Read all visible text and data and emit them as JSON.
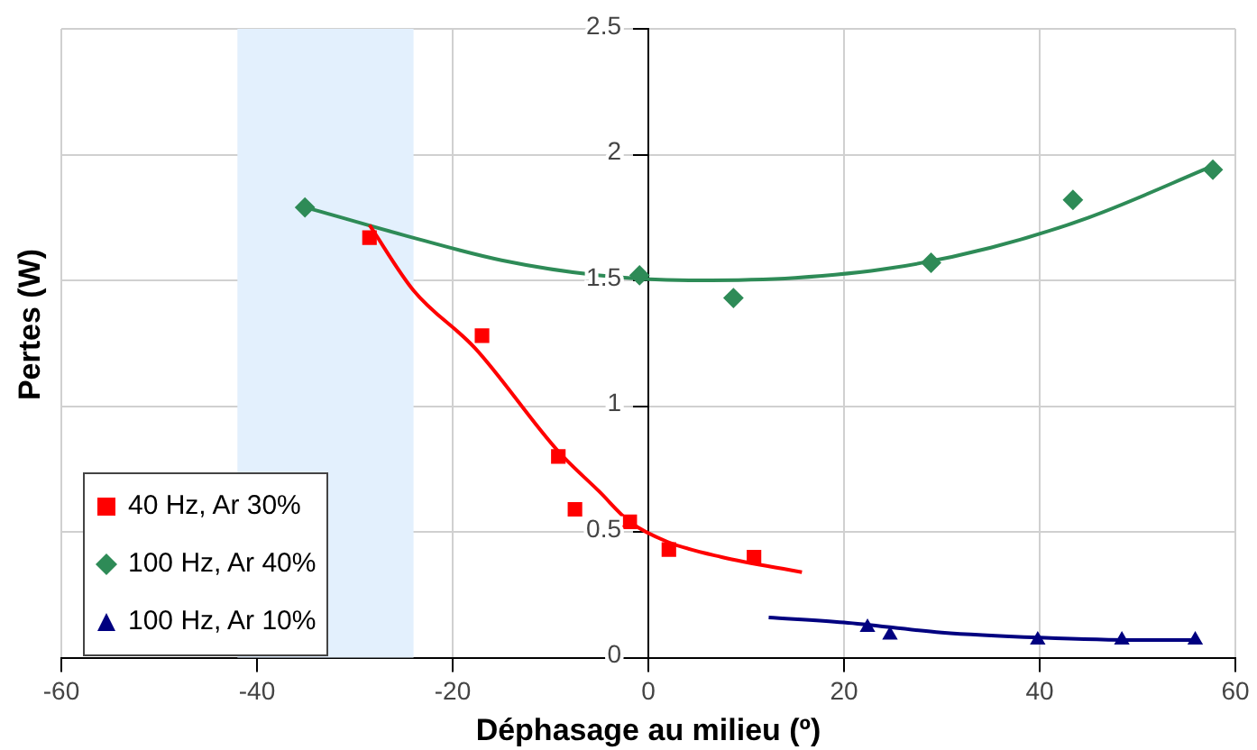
{
  "chart_data": {
    "type": "scatter",
    "xlabel": "Déphasage au milieu (º)",
    "ylabel": "Pertes (W)",
    "xlim": [
      -60,
      60
    ],
    "xticks": [
      -60,
      -40,
      -20,
      0,
      20,
      40,
      60
    ],
    "ylim": [
      0,
      2.5
    ],
    "yticks": [
      0,
      0.5,
      1,
      1.5,
      2,
      2.5
    ],
    "grid": true,
    "legend": "bottom left",
    "bands": [
      {
        "axis": "x",
        "from": -42,
        "to": -24,
        "color": "#e3f0fd"
      }
    ],
    "series": [
      {
        "name": "40 Hz, Ar 30%",
        "type": "scatter",
        "marker": "square",
        "color": "#ff0000",
        "x": [
          -28.5,
          -17,
          -9.2,
          -7.5,
          -1.9,
          2.1,
          10.8
        ],
        "values": [
          1.67,
          1.28,
          0.8,
          0.59,
          0.54,
          0.43,
          0.4
        ]
      },
      {
        "name": "100 Hz, Ar 40%",
        "type": "scatter",
        "marker": "diamond",
        "color": "#2e8b57",
        "x": [
          -35.1,
          -0.9,
          8.7,
          28.9,
          43.4,
          57.7
        ],
        "values": [
          1.79,
          1.52,
          1.43,
          1.57,
          1.82,
          1.94
        ]
      },
      {
        "name": "100 Hz, Ar 10%",
        "type": "scatter",
        "marker": "triangle",
        "color": "#000080",
        "x": [
          22.4,
          24.7,
          39.8,
          48.4,
          55.9
        ],
        "values": [
          0.12,
          0.09,
          0.07,
          0.07,
          0.07
        ]
      },
      {
        "type": "line",
        "marker": "none",
        "color": "#ff0000",
        "x": [
          -28.5,
          -24,
          -17.7,
          -9.2,
          -5,
          -1.9,
          2,
          7.5,
          15.7
        ],
        "values": [
          1.72,
          1.46,
          1.23,
          0.82,
          0.66,
          0.54,
          0.46,
          0.4,
          0.34
        ]
      },
      {
        "type": "line",
        "marker": "none",
        "color": "#2e8b57",
        "x": [
          -35,
          -25,
          -15,
          -5,
          5,
          15,
          25,
          35,
          45,
          58
        ],
        "values": [
          1.79,
          1.68,
          1.58,
          1.52,
          1.5,
          1.51,
          1.55,
          1.63,
          1.75,
          1.96
        ]
      },
      {
        "type": "line",
        "marker": "none",
        "color": "#000080",
        "x": [
          12.3,
          20,
          30,
          40,
          50,
          56
        ],
        "values": [
          0.16,
          0.14,
          0.1,
          0.08,
          0.07,
          0.07
        ]
      }
    ]
  }
}
